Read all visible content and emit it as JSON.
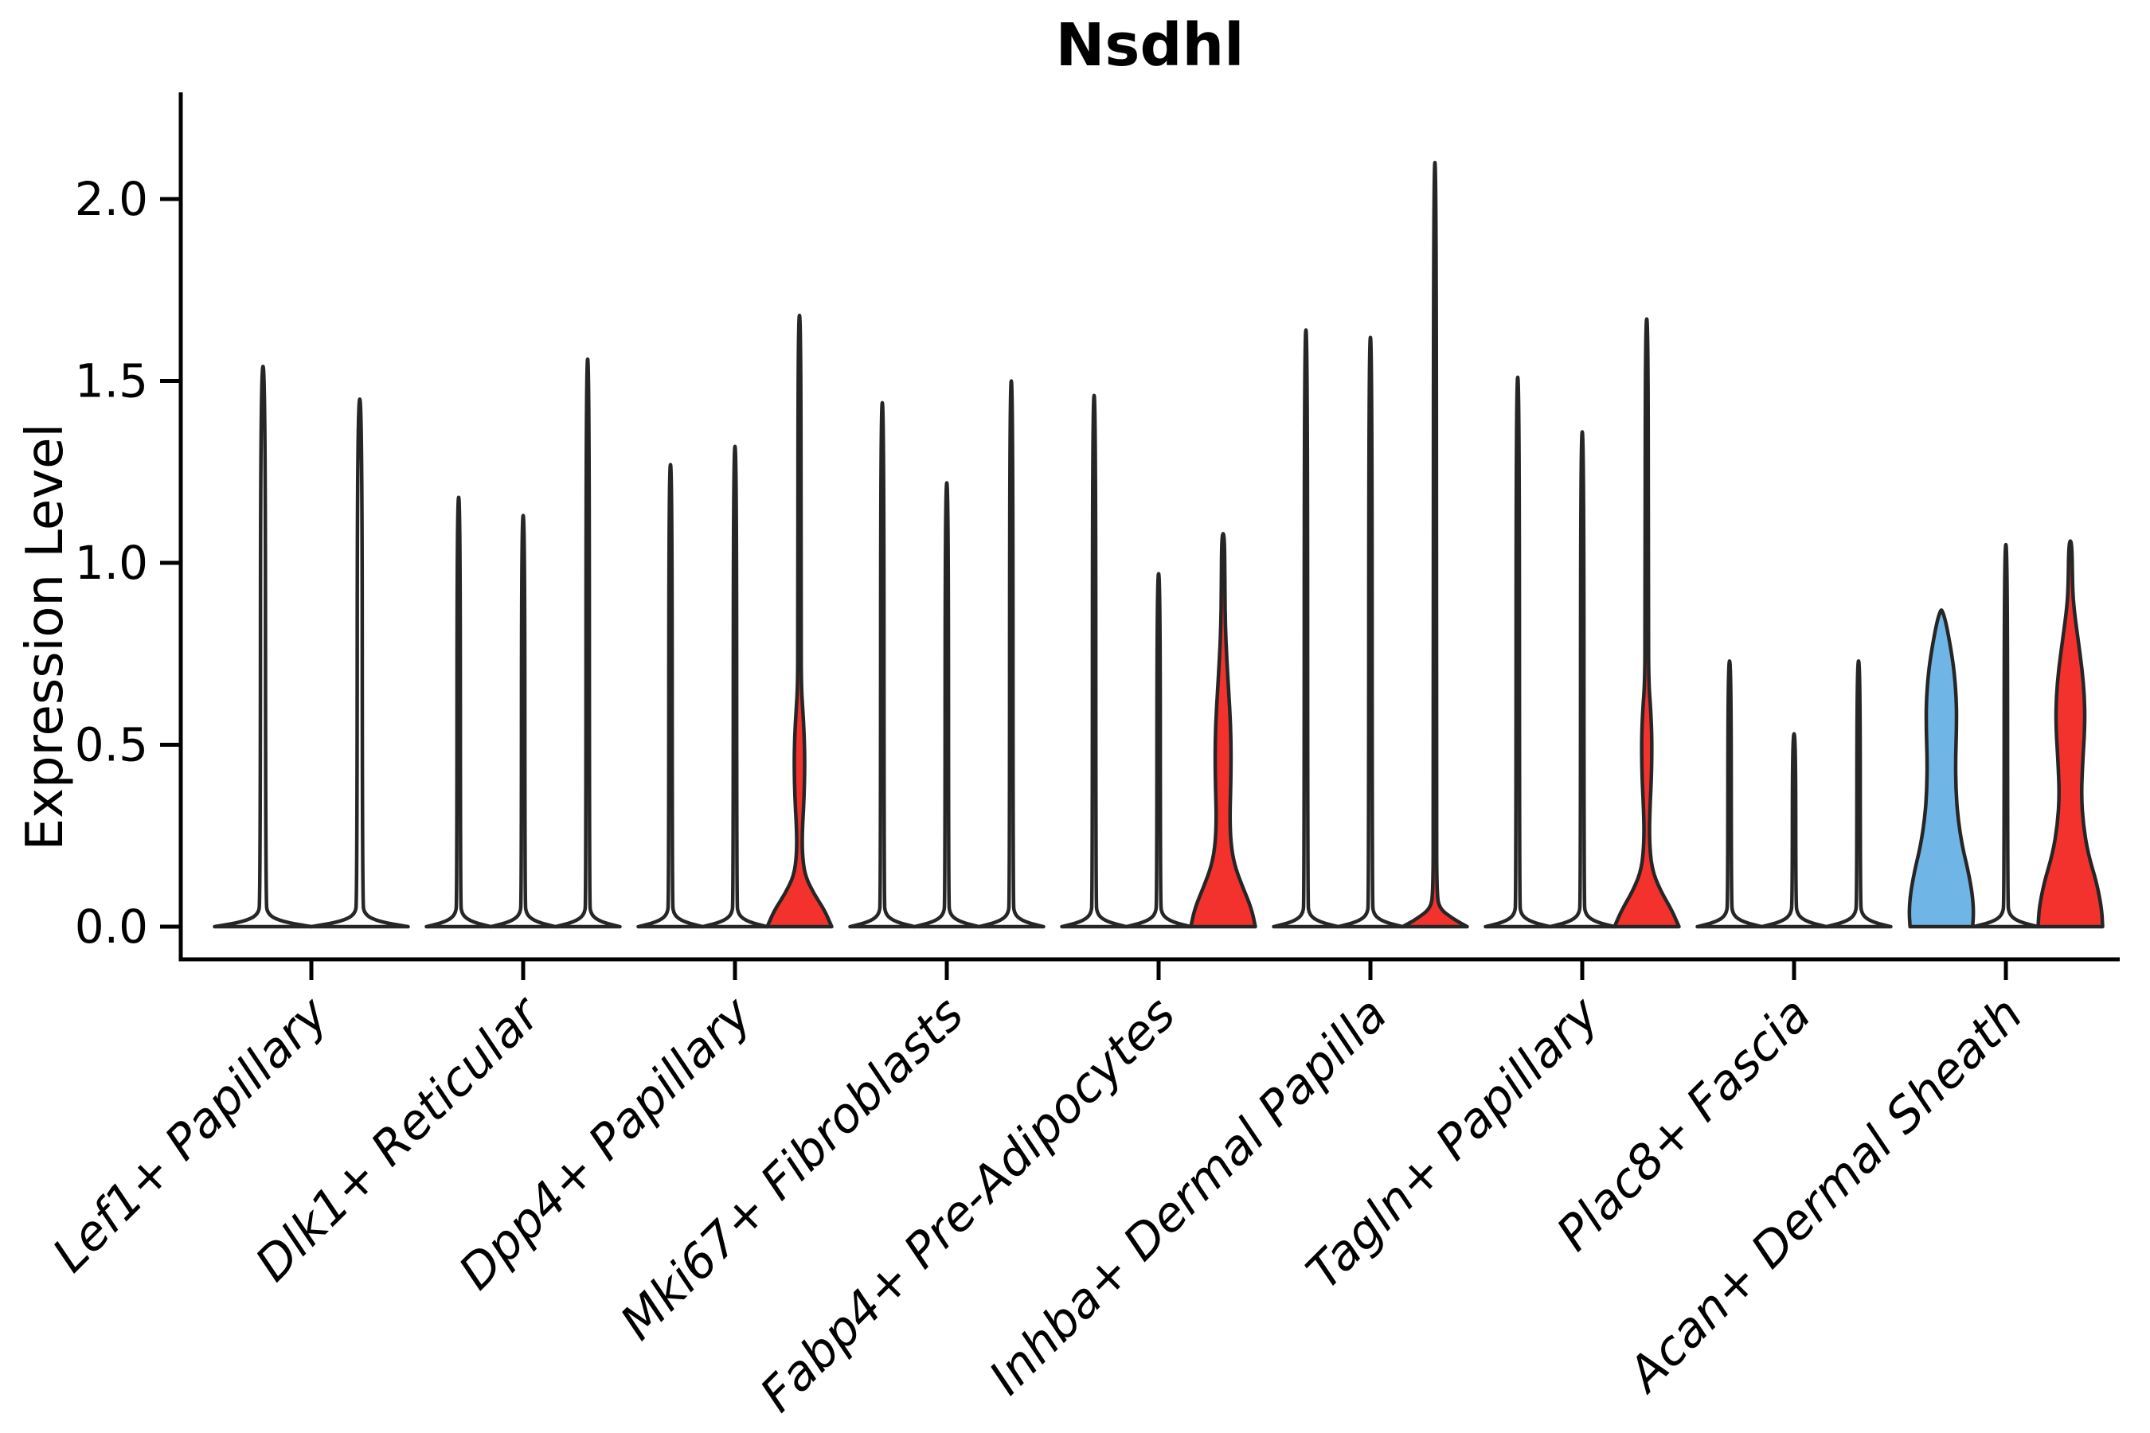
{
  "title": "Nsdhl",
  "chart_data": {
    "type": "violin",
    "title": "Nsdhl",
    "ylabel": "Expression Level",
    "xlabel": "",
    "ylim": [
      -0.09,
      2.28
    ],
    "yticks": [
      0.0,
      0.5,
      1.0,
      1.5,
      2.0
    ],
    "ytick_labels": [
      "0.0",
      "0.5",
      "1.0",
      "1.5",
      "2.0"
    ],
    "grid": false,
    "legend": "none",
    "colors": {
      "plain_fill": "#FFFFFF",
      "red": "#F4322D",
      "blue": "#6FB5E6",
      "edge": "#262626",
      "axis": "#000000"
    },
    "categories": [
      {
        "label": "Lef1+ Papillary",
        "violins": [
          {
            "max": 1.54,
            "fill": "plain",
            "profile": "spike"
          },
          {
            "max": 1.45,
            "fill": "plain",
            "profile": "spike"
          }
        ]
      },
      {
        "label": "Dlk1+ Reticular",
        "violins": [
          {
            "max": 1.18,
            "fill": "plain",
            "profile": "spike"
          },
          {
            "max": 1.13,
            "fill": "plain",
            "profile": "spike"
          },
          {
            "max": 1.56,
            "fill": "plain",
            "profile": "spike"
          }
        ]
      },
      {
        "label": "Dpp4+ Papillary",
        "violins": [
          {
            "max": 1.27,
            "fill": "plain",
            "profile": "spike"
          },
          {
            "max": 1.32,
            "fill": "plain",
            "profile": "spike"
          },
          {
            "max": 1.68,
            "fill": "red",
            "profile": "red_spindle_a"
          }
        ]
      },
      {
        "label": "Mki67+ Fibroblasts",
        "violins": [
          {
            "max": 1.44,
            "fill": "plain",
            "profile": "spike"
          },
          {
            "max": 1.22,
            "fill": "plain",
            "profile": "spike"
          },
          {
            "max": 1.5,
            "fill": "plain",
            "profile": "spike"
          }
        ]
      },
      {
        "label": "Fabp4+ Pre-Adipocytes",
        "violins": [
          {
            "max": 1.46,
            "fill": "plain",
            "profile": "spike"
          },
          {
            "max": 0.97,
            "fill": "plain",
            "profile": "spike"
          },
          {
            "max": 1.08,
            "fill": "red",
            "profile": "red_taper"
          }
        ]
      },
      {
        "label": "Inhba+ Dermal Papilla",
        "violins": [
          {
            "max": 1.64,
            "fill": "plain",
            "profile": "spike"
          },
          {
            "max": 1.62,
            "fill": "plain",
            "profile": "spike"
          },
          {
            "max": 2.1,
            "fill": "red",
            "profile": "red_tiny"
          }
        ]
      },
      {
        "label": "Tagln+ Papillary",
        "violins": [
          {
            "max": 1.51,
            "fill": "plain",
            "profile": "spike"
          },
          {
            "max": 1.36,
            "fill": "plain",
            "profile": "spike"
          },
          {
            "max": 1.67,
            "fill": "red",
            "profile": "red_spindle_b"
          }
        ]
      },
      {
        "label": "Plac8+ Fascia",
        "violins": [
          {
            "max": 0.73,
            "fill": "plain",
            "profile": "spike"
          },
          {
            "max": 0.53,
            "fill": "plain",
            "profile": "spike"
          },
          {
            "max": 0.73,
            "fill": "plain",
            "profile": "spike"
          }
        ]
      },
      {
        "label": "Acan+ Dermal Sheath",
        "violins": [
          {
            "max": 0.87,
            "fill": "blue",
            "profile": "blue_blob"
          },
          {
            "max": 1.05,
            "fill": "plain",
            "profile": "spike"
          },
          {
            "max": 1.06,
            "fill": "red",
            "profile": "red_blob"
          }
        ]
      }
    ],
    "profiles": {
      "spike": [
        [
          0,
          1.0
        ],
        [
          0.013,
          0.42
        ],
        [
          0.032,
          0.1
        ],
        [
          0.07,
          0.055
        ],
        [
          -1,
          0.05
        ]
      ],
      "red_spindle_a": [
        [
          0,
          1.0
        ],
        [
          0.045,
          0.78
        ],
        [
          0.09,
          0.45
        ],
        [
          0.14,
          0.17
        ],
        [
          0.2,
          0.085
        ],
        [
          0.27,
          0.09
        ],
        [
          0.35,
          0.14
        ],
        [
          0.44,
          0.165
        ],
        [
          0.52,
          0.15
        ],
        [
          0.6,
          0.1
        ],
        [
          0.66,
          0.06
        ],
        [
          0.78,
          0.05
        ],
        [
          -1,
          0.045
        ]
      ],
      "red_spindle_b": [
        [
          0,
          1.0
        ],
        [
          0.045,
          0.78
        ],
        [
          0.1,
          0.42
        ],
        [
          0.16,
          0.15
        ],
        [
          0.24,
          0.08
        ],
        [
          0.33,
          0.1
        ],
        [
          0.42,
          0.15
        ],
        [
          0.52,
          0.16
        ],
        [
          0.6,
          0.12
        ],
        [
          0.67,
          0.065
        ],
        [
          0.8,
          0.05
        ],
        [
          -1,
          0.045
        ]
      ],
      "red_taper": [
        [
          0,
          1.0
        ],
        [
          0.05,
          0.88
        ],
        [
          0.11,
          0.6
        ],
        [
          0.17,
          0.35
        ],
        [
          0.23,
          0.24
        ],
        [
          0.3,
          0.21
        ],
        [
          0.38,
          0.235
        ],
        [
          0.47,
          0.25
        ],
        [
          0.56,
          0.23
        ],
        [
          0.65,
          0.17
        ],
        [
          0.74,
          0.11
        ],
        [
          0.83,
          0.07
        ],
        [
          0.92,
          0.055
        ],
        [
          -1,
          0.045
        ]
      ],
      "red_tiny": [
        [
          0,
          1.0
        ],
        [
          0.022,
          0.55
        ],
        [
          0.05,
          0.14
        ],
        [
          0.09,
          0.06
        ],
        [
          0.3,
          0.05
        ],
        [
          -1,
          0.045
        ]
      ],
      "blue_blob": [
        [
          0,
          0.97
        ],
        [
          0.04,
          1.0
        ],
        [
          0.09,
          0.96
        ],
        [
          0.15,
          0.84
        ],
        [
          0.22,
          0.65
        ],
        [
          0.3,
          0.51
        ],
        [
          0.38,
          0.45
        ],
        [
          0.46,
          0.44
        ],
        [
          0.54,
          0.47
        ],
        [
          0.62,
          0.47
        ],
        [
          0.7,
          0.4
        ],
        [
          0.76,
          0.3
        ],
        [
          0.81,
          0.2
        ],
        [
          0.85,
          0.1
        ],
        [
          -1,
          0.02
        ]
      ],
      "red_blob": [
        [
          0,
          1.0
        ],
        [
          0.05,
          0.97
        ],
        [
          0.12,
          0.82
        ],
        [
          0.2,
          0.55
        ],
        [
          0.28,
          0.4
        ],
        [
          0.36,
          0.34
        ],
        [
          0.45,
          0.38
        ],
        [
          0.55,
          0.45
        ],
        [
          0.63,
          0.44
        ],
        [
          0.71,
          0.36
        ],
        [
          0.79,
          0.24
        ],
        [
          0.86,
          0.13
        ],
        [
          0.92,
          0.07
        ],
        [
          -1,
          0.05
        ]
      ]
    }
  }
}
